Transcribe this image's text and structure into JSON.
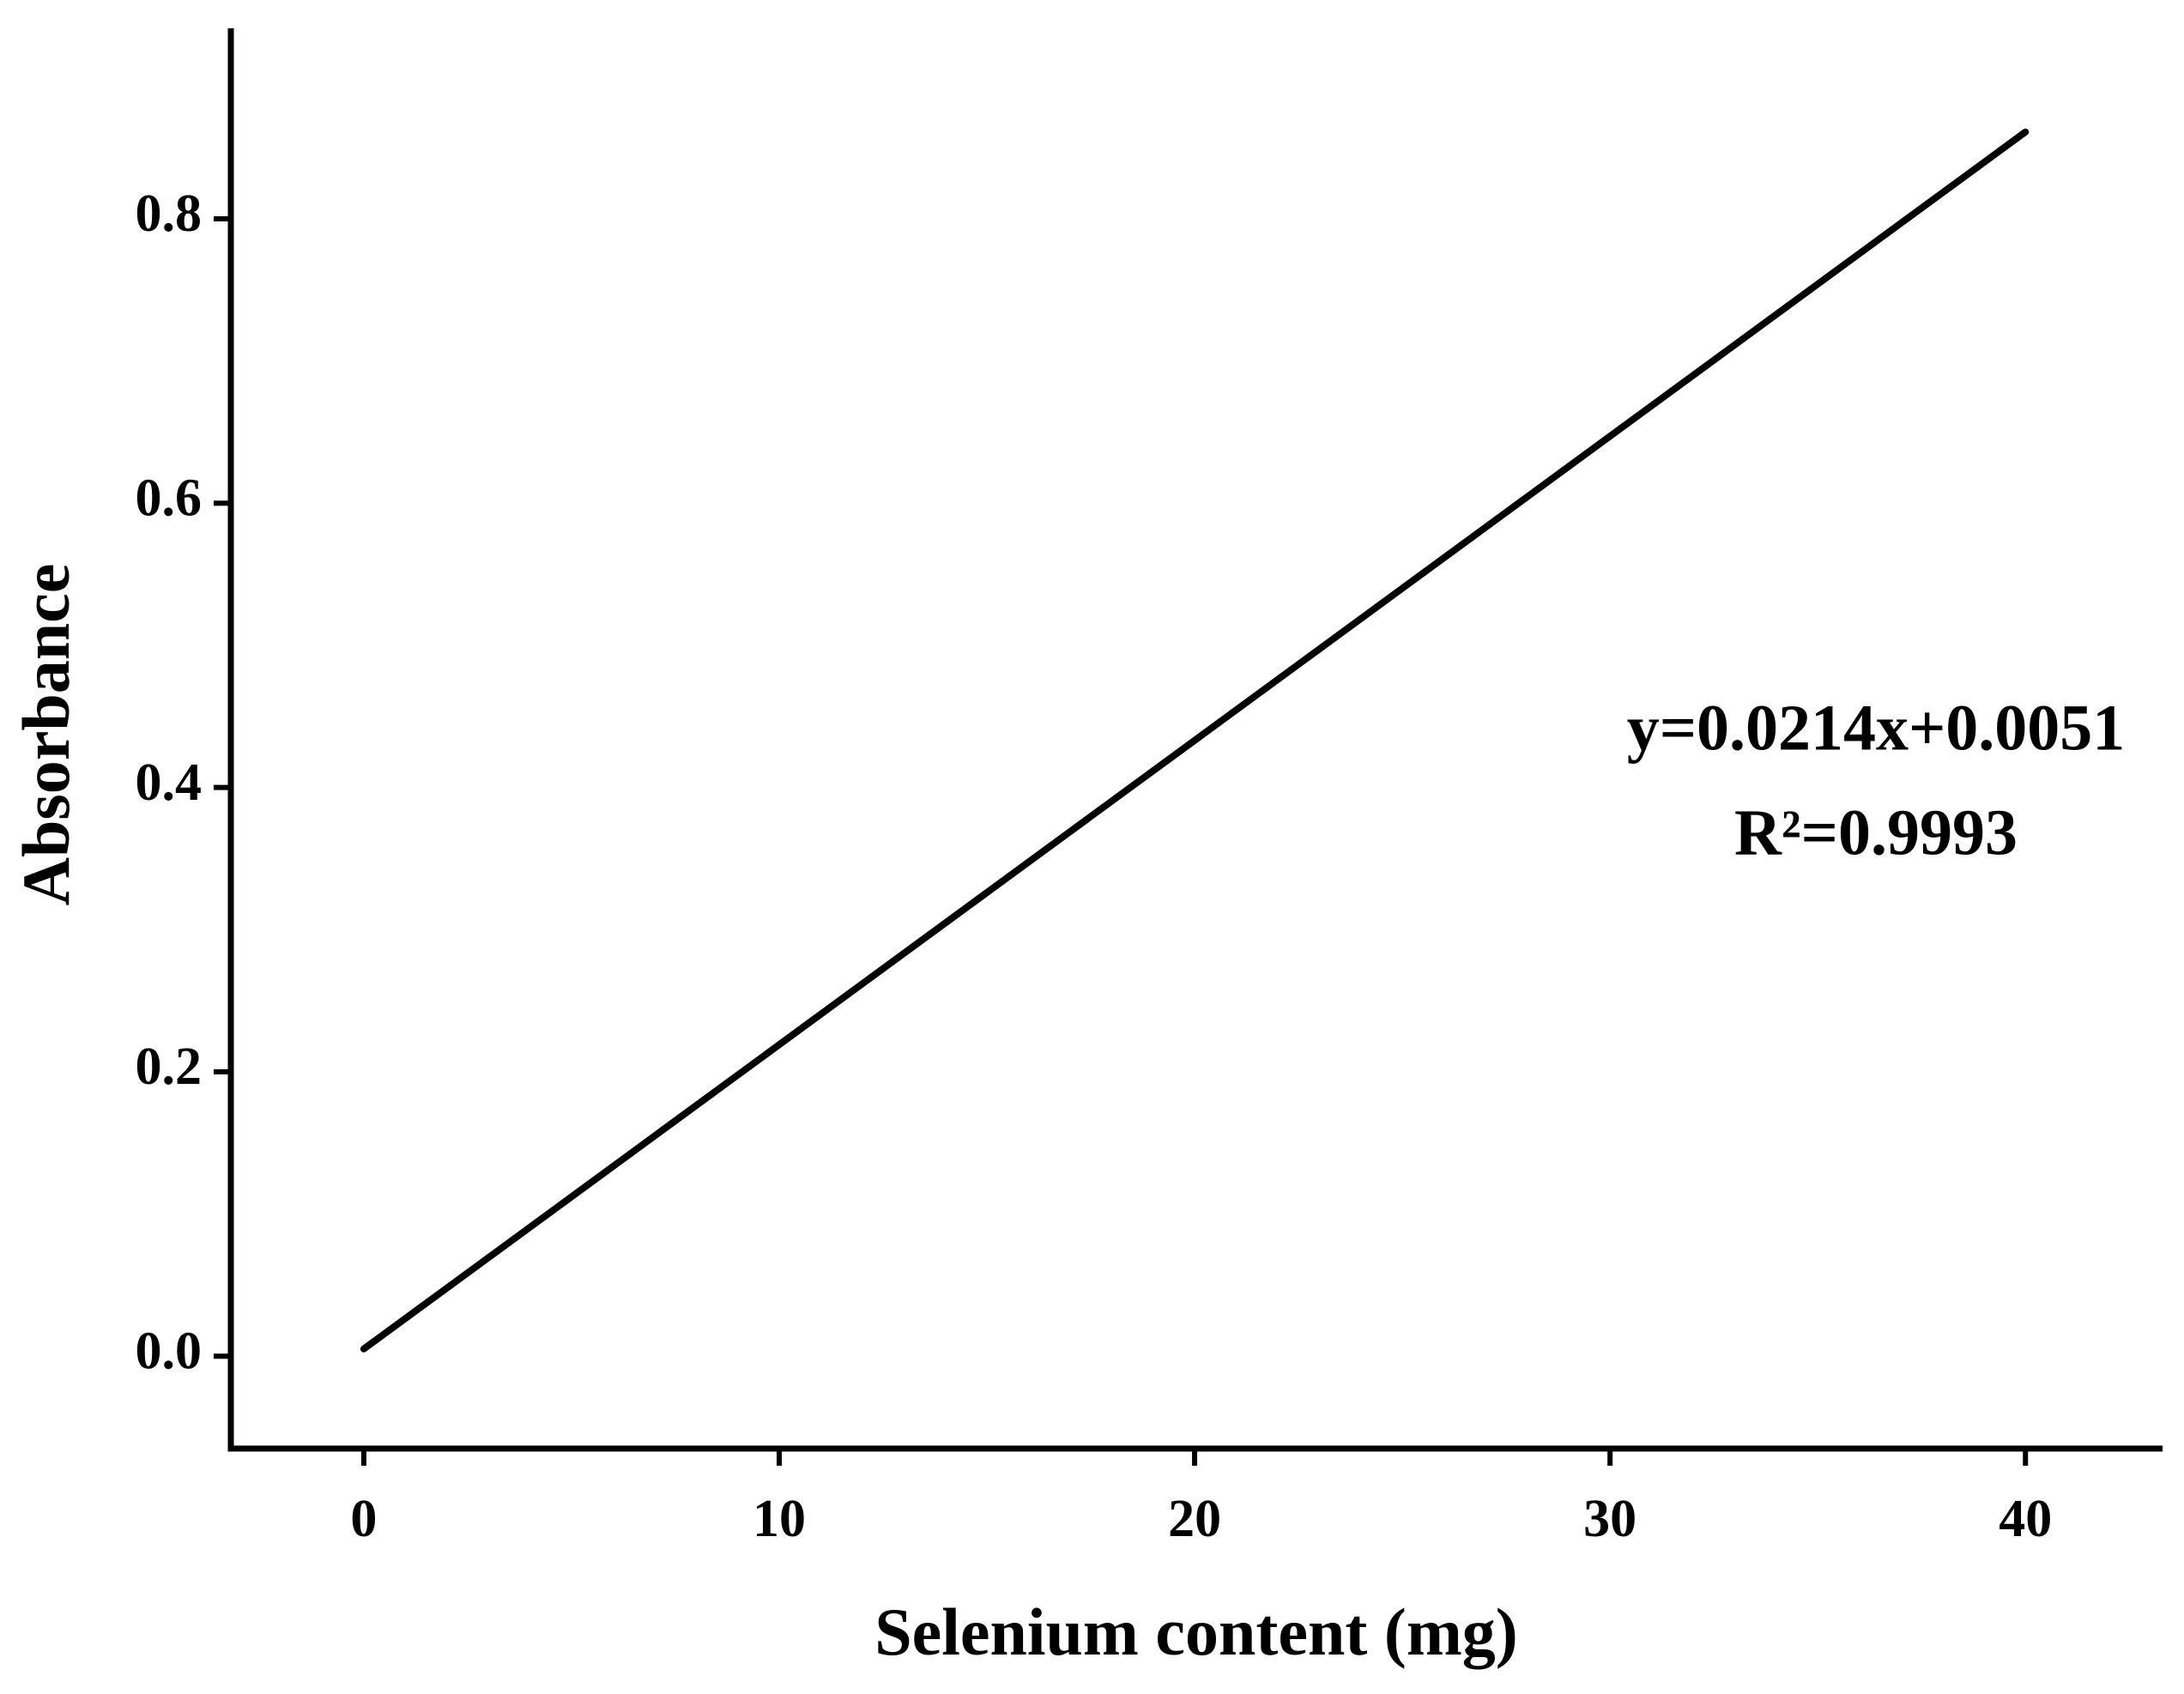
{
  "chart_data": {
    "type": "line",
    "x_label": "Selenium content (mg)",
    "y_label": "Absorbance",
    "annotations": [
      "y=0.0214x+0.0051",
      "R²=0.9993"
    ],
    "x": [
      0,
      40
    ],
    "values": [
      0.0051,
      0.8611
    ],
    "color": "#000000",
    "xlim": [
      -3.2,
      43.3
    ],
    "xticks": [
      0,
      10,
      20,
      30,
      40
    ],
    "ylim": [
      -0.065,
      0.934
    ],
    "yticks": [
      {
        "value": 0,
        "label": "0.0"
      },
      0.2,
      0.4,
      0.6,
      0.8
    ],
    "grid": false
  }
}
